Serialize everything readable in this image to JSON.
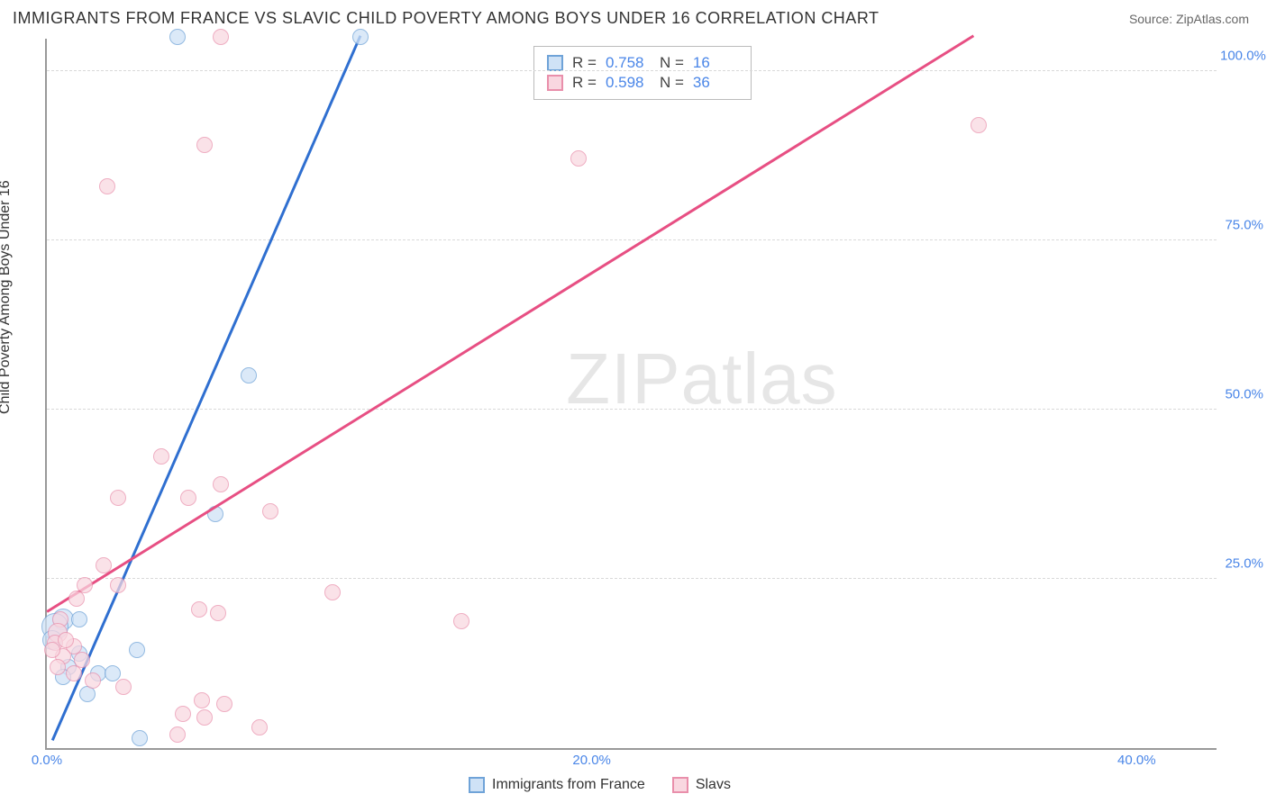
{
  "header": {
    "title": "IMMIGRANTS FROM FRANCE VS SLAVIC CHILD POVERTY AMONG BOYS UNDER 16 CORRELATION CHART",
    "source_label": "Source: ZipAtlas.com"
  },
  "watermark": {
    "bold": "ZIP",
    "thin": "atlas"
  },
  "chart": {
    "type": "scatter",
    "background_color": "#ffffff",
    "axis_color": "#999999",
    "grid_color": "#d9d9d9",
    "tick_color": "#4a86e8",
    "y_axis_label": "Child Poverty Among Boys Under 16",
    "xlim": [
      0,
      43
    ],
    "ylim": [
      0,
      105
    ],
    "x_ticks": [
      0,
      20,
      40
    ],
    "x_tick_labels": [
      "0.0%",
      "20.0%",
      "40.0%"
    ],
    "y_ticks": [
      25,
      50,
      75,
      100
    ],
    "y_tick_labels": [
      "25.0%",
      "50.0%",
      "75.0%",
      "100.0%"
    ],
    "series": [
      {
        "name": "Immigrants from France",
        "color_fill": "#cfe2f6",
        "color_stroke": "#6fa3d8",
        "line_color": "#2f6fd0",
        "marker_radius": 9,
        "marker_opacity": 0.75,
        "regression": {
          "x1": 0.2,
          "y1": 1,
          "x2": 11.5,
          "y2": 105
        },
        "stats": {
          "R": "0.758",
          "N": "16"
        },
        "points": [
          {
            "x": 4.8,
            "y": 105,
            "r": 9
          },
          {
            "x": 11.5,
            "y": 105,
            "r": 9
          },
          {
            "x": 7.4,
            "y": 55,
            "r": 9
          },
          {
            "x": 6.2,
            "y": 34.5,
            "r": 9
          },
          {
            "x": 0.6,
            "y": 19,
            "r": 12
          },
          {
            "x": 1.2,
            "y": 19,
            "r": 9
          },
          {
            "x": 0.3,
            "y": 18,
            "r": 15
          },
          {
            "x": 0.2,
            "y": 16,
            "r": 11
          },
          {
            "x": 3.3,
            "y": 14.5,
            "r": 9
          },
          {
            "x": 1.2,
            "y": 14,
            "r": 9
          },
          {
            "x": 0.8,
            "y": 12,
            "r": 9
          },
          {
            "x": 1.9,
            "y": 11,
            "r": 9
          },
          {
            "x": 2.4,
            "y": 11,
            "r": 9
          },
          {
            "x": 0.6,
            "y": 10.5,
            "r": 9
          },
          {
            "x": 1.5,
            "y": 8,
            "r": 9
          },
          {
            "x": 3.4,
            "y": 1.5,
            "r": 9
          }
        ]
      },
      {
        "name": "Slavs",
        "color_fill": "#f9d7e0",
        "color_stroke": "#e98fab",
        "line_color": "#e74f83",
        "marker_radius": 9,
        "marker_opacity": 0.72,
        "regression": {
          "x1": 0,
          "y1": 20,
          "x2": 34,
          "y2": 105
        },
        "stats": {
          "R": "0.598",
          "N": "36"
        },
        "points": [
          {
            "x": 6.4,
            "y": 105,
            "r": 9
          },
          {
            "x": 34.2,
            "y": 92,
            "r": 9
          },
          {
            "x": 5.8,
            "y": 89,
            "r": 9
          },
          {
            "x": 19.5,
            "y": 87,
            "r": 9
          },
          {
            "x": 2.2,
            "y": 83,
            "r": 9
          },
          {
            "x": 4.2,
            "y": 43,
            "r": 9
          },
          {
            "x": 6.4,
            "y": 39,
            "r": 9
          },
          {
            "x": 2.6,
            "y": 37,
            "r": 9
          },
          {
            "x": 5.2,
            "y": 37,
            "r": 9
          },
          {
            "x": 8.2,
            "y": 35,
            "r": 9
          },
          {
            "x": 2.1,
            "y": 27,
            "r": 9
          },
          {
            "x": 1.4,
            "y": 24,
            "r": 9
          },
          {
            "x": 2.6,
            "y": 24,
            "r": 9
          },
          {
            "x": 10.5,
            "y": 23,
            "r": 9
          },
          {
            "x": 1.1,
            "y": 22,
            "r": 9
          },
          {
            "x": 5.6,
            "y": 20.5,
            "r": 9
          },
          {
            "x": 6.3,
            "y": 20,
            "r": 9
          },
          {
            "x": 0.5,
            "y": 19,
            "r": 9
          },
          {
            "x": 15.2,
            "y": 18.8,
            "r": 9
          },
          {
            "x": 0.4,
            "y": 17,
            "r": 11
          },
          {
            "x": 0.3,
            "y": 15.5,
            "r": 9
          },
          {
            "x": 1.0,
            "y": 15,
            "r": 9
          },
          {
            "x": 0.6,
            "y": 13.5,
            "r": 9
          },
          {
            "x": 1.3,
            "y": 13,
            "r": 9
          },
          {
            "x": 0.4,
            "y": 12,
            "r": 9
          },
          {
            "x": 0.2,
            "y": 14.5,
            "r": 9
          },
          {
            "x": 1.7,
            "y": 10,
            "r": 9
          },
          {
            "x": 2.8,
            "y": 9,
            "r": 9
          },
          {
            "x": 5.7,
            "y": 7,
            "r": 9
          },
          {
            "x": 6.5,
            "y": 6.5,
            "r": 9
          },
          {
            "x": 5.0,
            "y": 5,
            "r": 9
          },
          {
            "x": 5.8,
            "y": 4.5,
            "r": 9
          },
          {
            "x": 7.8,
            "y": 3,
            "r": 9
          },
          {
            "x": 4.8,
            "y": 2,
            "r": 9
          },
          {
            "x": 1.0,
            "y": 11,
            "r": 9
          },
          {
            "x": 0.7,
            "y": 16,
            "r": 9
          }
        ]
      }
    ]
  },
  "stats_box": {
    "label_R": "R =",
    "label_N": "N ="
  },
  "legend": {
    "series1": "Immigrants from France",
    "series2": "Slavs"
  }
}
